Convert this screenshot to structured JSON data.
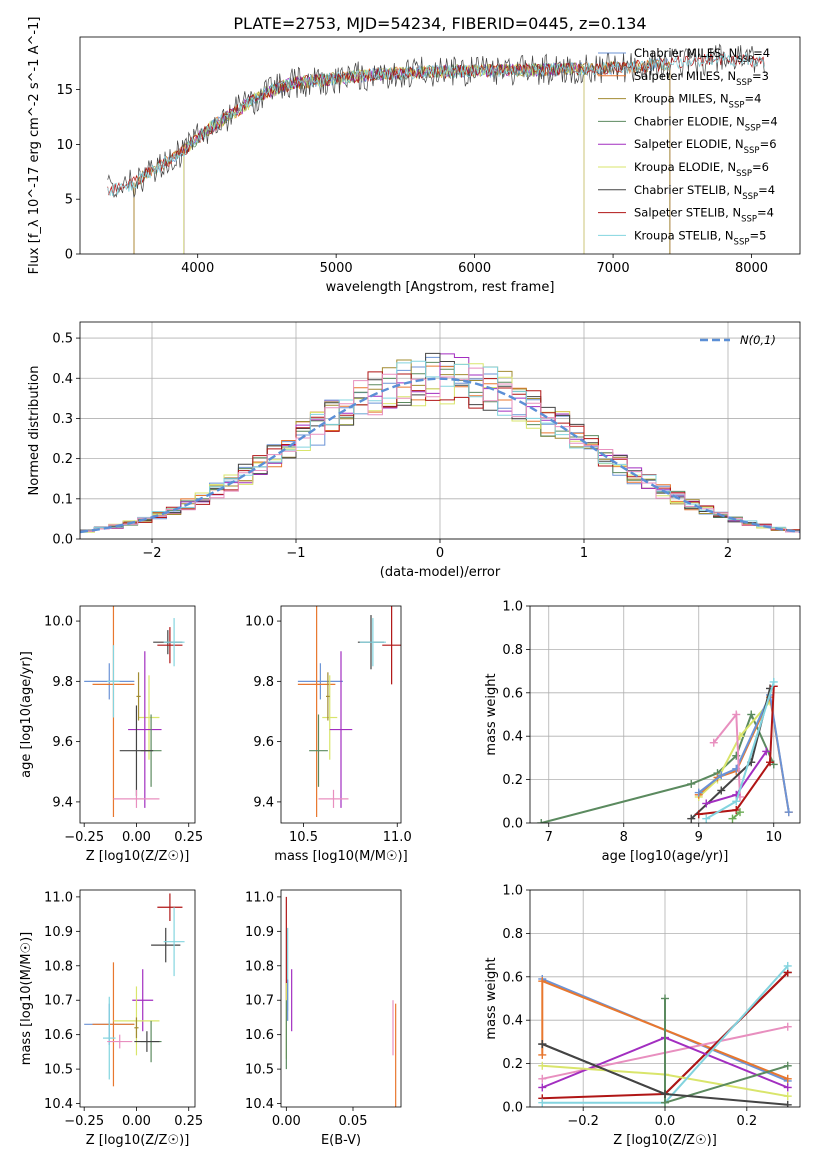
{
  "figure": {
    "title": "PLATE=2753, MJD=54234, FIBERID=0445, z=0.134"
  },
  "colors": {
    "Chabrier MILES": "#6b93d6",
    "Salpeter MILES": "#e8772e",
    "Kroupa MILES": "#a28c32",
    "Chabrier ELODIE": "#5b8a5f",
    "Salpeter ELODIE": "#a22ec0",
    "Kroupa ELODIE": "#d9e56b",
    "Chabrier STELIB": "#444444",
    "Salpeter STELIB": "#b01515",
    "Kroupa STELIB": "#83d4df",
    "pink": "#e88fbf",
    "green": "#6bab55",
    "normal_curve": "#5b8fd6"
  },
  "chart_data": [
    {
      "id": "spectrum",
      "type": "line",
      "title": "PLATE=2753, MJD=54234, FIBERID=0445, z=0.134",
      "xlabel": "wavelength [Angstrom, rest frame]",
      "ylabel": "Flux [f_λ 10^-17 erg cm^-2 s^-1 A^-1]",
      "xlim": [
        3150,
        8350
      ],
      "ylim": [
        0,
        19.8
      ],
      "xticks": [
        4000,
        5000,
        6000,
        7000,
        8000
      ],
      "yticks": [
        0,
        5,
        10,
        15
      ],
      "grid": false,
      "legend_position": "top-right",
      "continuum": {
        "x": [
          3350,
          3500,
          3700,
          3900,
          4100,
          4300,
          4500,
          4700,
          5000,
          5300,
          5600,
          6000,
          6400,
          6800,
          7200,
          7600,
          7800,
          8100
        ],
        "y": [
          5.8,
          6.2,
          7.8,
          9.5,
          11.6,
          13.2,
          14.8,
          15.6,
          16.0,
          16.4,
          16.6,
          16.7,
          16.8,
          16.9,
          17.1,
          17.6,
          17.8,
          17.6
        ]
      },
      "series": [
        {
          "label": "Chabrier MILES",
          "nssp": "4"
        },
        {
          "label": "Salpeter MILES",
          "nssp": "3"
        },
        {
          "label": "Kroupa MILES",
          "nssp": "4"
        },
        {
          "label": "Chabrier ELODIE",
          "nssp": "4"
        },
        {
          "label": "Salpeter ELODIE",
          "nssp": "6"
        },
        {
          "label": "Kroupa ELODIE",
          "nssp": "6"
        },
        {
          "label": "Chabrier STELIB",
          "nssp": "4"
        },
        {
          "label": "Salpeter STELIB",
          "nssp": "4"
        },
        {
          "label": "Kroupa STELIB",
          "nssp": "5"
        }
      ]
    },
    {
      "id": "residual_hist",
      "type": "bar",
      "xlabel": "(data-model)/error",
      "ylabel": "Normed distribution",
      "xlim": [
        -2.5,
        2.5
      ],
      "ylim": [
        0,
        0.54
      ],
      "xticks": [
        -2,
        -1,
        0,
        1,
        2
      ],
      "yticks": [
        0.0,
        0.1,
        0.2,
        0.3,
        0.4,
        0.5
      ],
      "grid": true,
      "legend_position": "top-right",
      "legend_label": "N(0,1)",
      "bin_width": 0.1,
      "bin_start": -2.5
    },
    {
      "id": "age_vs_Z",
      "type": "scatter",
      "xlabel": "Z [log10(Z/Z☉)]",
      "ylabel": "age [log10(age/yr)]",
      "xlim": [
        -0.27,
        0.28
      ],
      "ylim": [
        9.33,
        10.05
      ],
      "xticks": [
        -0.25,
        0.0,
        0.25
      ],
      "yticks": [
        9.4,
        9.6,
        9.8,
        10.0
      ],
      "grid": false,
      "points": [
        {
          "color": "Chabrier MILES",
          "x": -0.13,
          "y": 9.8,
          "xerr": 0.12,
          "yerr": 0.06
        },
        {
          "color": "Salpeter MILES",
          "x": -0.11,
          "y": 9.79,
          "xerr": 0.1,
          "yerr": 0.44
        },
        {
          "color": "Kroupa STELIB",
          "x": -0.11,
          "y": 9.8,
          "xerr": 0.03,
          "yerr": 0.12
        },
        {
          "color": "Chabrier STELIB",
          "x": 0.15,
          "y": 9.93,
          "xerr": 0.07,
          "yerr": 0.04
        },
        {
          "color": "Salpeter STELIB",
          "x": 0.16,
          "y": 9.92,
          "xerr": 0.06,
          "yerr": 0.06
        },
        {
          "color": "Kroupa STELIB",
          "x": 0.18,
          "y": 9.93,
          "xerr": 0.05,
          "yerr": 0.08
        },
        {
          "color": "Kroupa ELODIE",
          "x": 0.06,
          "y": 9.68,
          "xerr": 0.05,
          "yerr": 0.14
        },
        {
          "color": "Salpeter ELODIE",
          "x": 0.04,
          "y": 9.64,
          "xerr": 0.08,
          "yerr": 0.26
        },
        {
          "color": "Chabrier ELODIE",
          "x": 0.07,
          "y": 9.57,
          "xerr": 0.05,
          "yerr": 0.12
        },
        {
          "color": "Chabrier STELIB",
          "x": 0.0,
          "y": 9.57,
          "xerr": 0.08,
          "yerr": 0.15
        },
        {
          "color": "pink",
          "x": 0.0,
          "y": 9.41,
          "xerr": 0.11,
          "yerr": 0.03
        },
        {
          "color": "Kroupa MILES",
          "x": 0.01,
          "y": 9.75,
          "xerr": 0.01,
          "yerr": 0.08
        }
      ]
    },
    {
      "id": "age_vs_mass",
      "type": "scatter",
      "xlabel": "mass [log10(M/M☉)]",
      "ylabel": "",
      "xlim": [
        10.38,
        11.02
      ],
      "ylim": [
        9.33,
        10.05
      ],
      "xticks": [
        10.5,
        11.0
      ],
      "yticks": [
        9.4,
        9.6,
        9.8,
        10.0
      ],
      "grid": false,
      "points": [
        {
          "color": "Chabrier MILES",
          "x": 10.59,
          "y": 9.8,
          "xerr": 0.12,
          "yerr": 0.06
        },
        {
          "color": "Salpeter MILES",
          "x": 10.57,
          "y": 9.79,
          "xerr": 0.1,
          "yerr": 0.44
        },
        {
          "color": "Chabrier STELIB",
          "x": 10.86,
          "y": 9.93,
          "xerr": 0.07,
          "yerr": 0.09
        },
        {
          "color": "Salpeter STELIB",
          "x": 10.97,
          "y": 9.92,
          "xerr": 0.05,
          "yerr": 0.13
        },
        {
          "color": "Kroupa STELIB",
          "x": 10.87,
          "y": 9.93,
          "xerr": 0.07,
          "yerr": 0.08
        },
        {
          "color": "Kroupa ELODIE",
          "x": 10.64,
          "y": 9.68,
          "xerr": 0.04,
          "yerr": 0.14
        },
        {
          "color": "Salpeter ELODIE",
          "x": 10.7,
          "y": 9.64,
          "xerr": 0.06,
          "yerr": 0.26
        },
        {
          "color": "Chabrier ELODIE",
          "x": 10.58,
          "y": 9.57,
          "xerr": 0.05,
          "yerr": 0.12
        },
        {
          "color": "pink",
          "x": 10.66,
          "y": 9.41,
          "xerr": 0.08,
          "yerr": 0.03
        },
        {
          "color": "Kroupa MILES",
          "x": 10.63,
          "y": 9.75,
          "xerr": 0.01,
          "yerr": 0.08
        }
      ]
    },
    {
      "id": "mass_weight_vs_age",
      "type": "line",
      "xlabel": "age [log10(age/yr)]",
      "ylabel": "mass weight",
      "xlim": [
        6.75,
        10.35
      ],
      "ylim": [
        0,
        1.0
      ],
      "xticks": [
        7,
        8,
        9,
        10
      ],
      "yticks": [
        0.0,
        0.2,
        0.4,
        0.6,
        0.8,
        1.0
      ],
      "grid": true,
      "series": [
        {
          "color": "Chabrier ELODIE",
          "x": [
            6.9,
            8.9,
            9.25,
            9.5,
            9.7,
            10.0
          ],
          "y": [
            0.0,
            0.18,
            0.23,
            0.31,
            0.5,
            0.27
          ]
        },
        {
          "color": "Kroupa ELODIE",
          "x": [
            9.0,
            9.25,
            9.55,
            9.95
          ],
          "y": [
            0.12,
            0.2,
            0.4,
            0.56
          ]
        },
        {
          "color": "Salpeter MILES",
          "x": [
            9.0,
            9.25,
            9.5,
            9.95,
            10.2
          ],
          "y": [
            0.13,
            0.21,
            0.24,
            0.58,
            0.05
          ]
        },
        {
          "color": "Chabrier MILES",
          "x": [
            9.0,
            9.3,
            9.5,
            9.95,
            10.2
          ],
          "y": [
            0.14,
            0.22,
            0.25,
            0.59,
            0.05
          ]
        },
        {
          "color": "pink",
          "x": [
            9.2,
            9.5,
            9.55
          ],
          "y": [
            0.37,
            0.5,
            0.12
          ]
        },
        {
          "color": "Chabrier STELIB",
          "x": [
            8.9,
            9.3,
            9.7,
            9.95
          ],
          "y": [
            0.02,
            0.15,
            0.28,
            0.62
          ]
        },
        {
          "color": "Salpeter STELIB",
          "x": [
            9.0,
            9.5,
            9.95,
            10.0
          ],
          "y": [
            0.04,
            0.06,
            0.28,
            0.63
          ]
        },
        {
          "color": "Salpeter ELODIE",
          "x": [
            9.1,
            9.5,
            9.9
          ],
          "y": [
            0.09,
            0.13,
            0.33
          ]
        },
        {
          "color": "Kroupa STELIB",
          "x": [
            9.1,
            9.5,
            10.0
          ],
          "y": [
            0.02,
            0.1,
            0.65
          ]
        },
        {
          "color": "green",
          "x": [
            9.45,
            9.55
          ],
          "y": [
            0.02,
            0.05
          ]
        }
      ]
    },
    {
      "id": "mass_vs_Z",
      "type": "scatter",
      "xlabel": "Z [log10(Z/Z☉)]",
      "ylabel": "mass [log10(M/M☉)]",
      "xlim": [
        -0.27,
        0.28
      ],
      "ylim": [
        10.39,
        11.02
      ],
      "xticks": [
        -0.25,
        0.0,
        0.25
      ],
      "yticks": [
        10.4,
        10.5,
        10.6,
        10.7,
        10.8,
        10.9,
        11.0
      ],
      "grid": false,
      "points": [
        {
          "color": "Chabrier MILES",
          "x": -0.13,
          "y": 10.63,
          "xerr": 0.12,
          "yerr": 0.06
        },
        {
          "color": "Salpeter MILES",
          "x": -0.11,
          "y": 10.63,
          "xerr": 0.1,
          "yerr": 0.18
        },
        {
          "color": "Kroupa STELIB",
          "x": -0.13,
          "y": 10.59,
          "xerr": 0.03,
          "yerr": 0.12
        },
        {
          "color": "Salpeter STELIB",
          "x": 0.16,
          "y": 10.97,
          "xerr": 0.06,
          "yerr": 0.04
        },
        {
          "color": "Chabrier STELIB",
          "x": 0.14,
          "y": 10.86,
          "xerr": 0.07,
          "yerr": 0.05
        },
        {
          "color": "Kroupa STELIB",
          "x": 0.18,
          "y": 10.87,
          "xerr": 0.05,
          "yerr": 0.1
        },
        {
          "color": "Salpeter ELODIE",
          "x": 0.03,
          "y": 10.7,
          "xerr": 0.05,
          "yerr": 0.09
        },
        {
          "color": "Kroupa ELODIE",
          "x": 0.0,
          "y": 10.64,
          "xerr": 0.11,
          "yerr": 0.1
        },
        {
          "color": "Chabrier ELODIE",
          "x": 0.07,
          "y": 10.58,
          "xerr": 0.05,
          "yerr": 0.06
        },
        {
          "color": "Chabrier STELIB",
          "x": 0.05,
          "y": 10.58,
          "xerr": 0.06,
          "yerr": 0.03
        },
        {
          "color": "pink",
          "x": -0.08,
          "y": 10.58,
          "xerr": 0.06,
          "yerr": 0.02
        },
        {
          "color": "Kroupa MILES",
          "x": 0.0,
          "y": 10.62,
          "xerr": 0.01,
          "yerr": 0.03
        }
      ]
    },
    {
      "id": "mass_vs_EBV",
      "type": "scatter",
      "xlabel": "E(B-V)",
      "ylabel": "",
      "xlim": [
        -0.004,
        0.086
      ],
      "ylim": [
        10.39,
        11.02
      ],
      "xticks": [
        0.0,
        0.05
      ],
      "yticks": [
        10.4,
        10.5,
        10.6,
        10.7,
        10.8,
        10.9,
        11.0
      ],
      "grid": false,
      "points": [
        {
          "color": "Salpeter STELIB",
          "x": 0.0,
          "y": 10.85,
          "xerr": 0.0,
          "yerr": 0.15
        },
        {
          "color": "Kroupa STELIB",
          "x": 0.001,
          "y": 10.79,
          "xerr": 0.0,
          "yerr": 0.12
        },
        {
          "color": "Kroupa ELODIE",
          "x": 0.0,
          "y": 10.64,
          "xerr": 0.0,
          "yerr": 0.11
        },
        {
          "color": "Chabrier ELODIE",
          "x": 0.0,
          "y": 10.6,
          "xerr": 0.0,
          "yerr": 0.1
        },
        {
          "color": "Chabrier MILES",
          "x": 0.001,
          "y": 10.7,
          "xerr": 0.0,
          "yerr": 0.06
        },
        {
          "color": "Salpeter ELODIE",
          "x": 0.004,
          "y": 10.7,
          "xerr": 0.0,
          "yerr": 0.09
        },
        {
          "color": "pink",
          "x": 0.08,
          "y": 10.62,
          "xerr": 0.0,
          "yerr": 0.08
        },
        {
          "color": "Salpeter MILES",
          "x": 0.082,
          "y": 10.54,
          "xerr": 0.0,
          "yerr": 0.15
        }
      ]
    },
    {
      "id": "mass_weight_vs_Z",
      "type": "line",
      "xlabel": "Z [log10(Z/Z☉)]",
      "ylabel": "mass weight",
      "xlim": [
        -0.33,
        0.33
      ],
      "ylim": [
        0,
        1.0
      ],
      "xticks": [
        -0.2,
        0.0,
        0.2
      ],
      "yticks": [
        0.0,
        0.2,
        0.4,
        0.6,
        0.8,
        1.0
      ],
      "grid": true,
      "series": [
        {
          "color": "Chabrier MILES",
          "x": [
            -0.3,
            0.3
          ],
          "y": [
            0.59,
            0.12
          ]
        },
        {
          "color": "Salpeter MILES",
          "x": [
            -0.3,
            -0.3,
            0.3
          ],
          "y": [
            0.24,
            0.58,
            0.13
          ]
        },
        {
          "color": "pink",
          "x": [
            -0.3,
            0.3
          ],
          "y": [
            0.13,
            0.37
          ]
        },
        {
          "color": "Chabrier STELIB",
          "x": [
            -0.3,
            0.0,
            0.3
          ],
          "y": [
            0.29,
            0.06,
            0.62
          ]
        },
        {
          "color": "Salpeter STELIB",
          "x": [
            -0.3,
            0.0,
            0.3
          ],
          "y": [
            0.04,
            0.06,
            0.62
          ]
        },
        {
          "color": "Salpeter ELODIE",
          "x": [
            -0.3,
            0.0,
            0.3
          ],
          "y": [
            0.09,
            0.32,
            0.09
          ]
        },
        {
          "color": "Kroupa ELODIE",
          "x": [
            -0.3,
            0.0,
            0.3
          ],
          "y": [
            0.19,
            0.15,
            0.05
          ]
        },
        {
          "color": "Kroupa STELIB",
          "x": [
            -0.3,
            0.0,
            0.3
          ],
          "y": [
            0.02,
            0.02,
            0.65
          ]
        },
        {
          "color": "Chabrier ELODIE",
          "x": [
            0.0,
            0.0,
            0.3
          ],
          "y": [
            0.5,
            0.02,
            0.19
          ]
        },
        {
          "color": "Chabrier STELIB",
          "x": [
            -0.3,
            0.0,
            0.3
          ],
          "y": [
            0.29,
            0.06,
            0.01
          ]
        }
      ]
    }
  ]
}
